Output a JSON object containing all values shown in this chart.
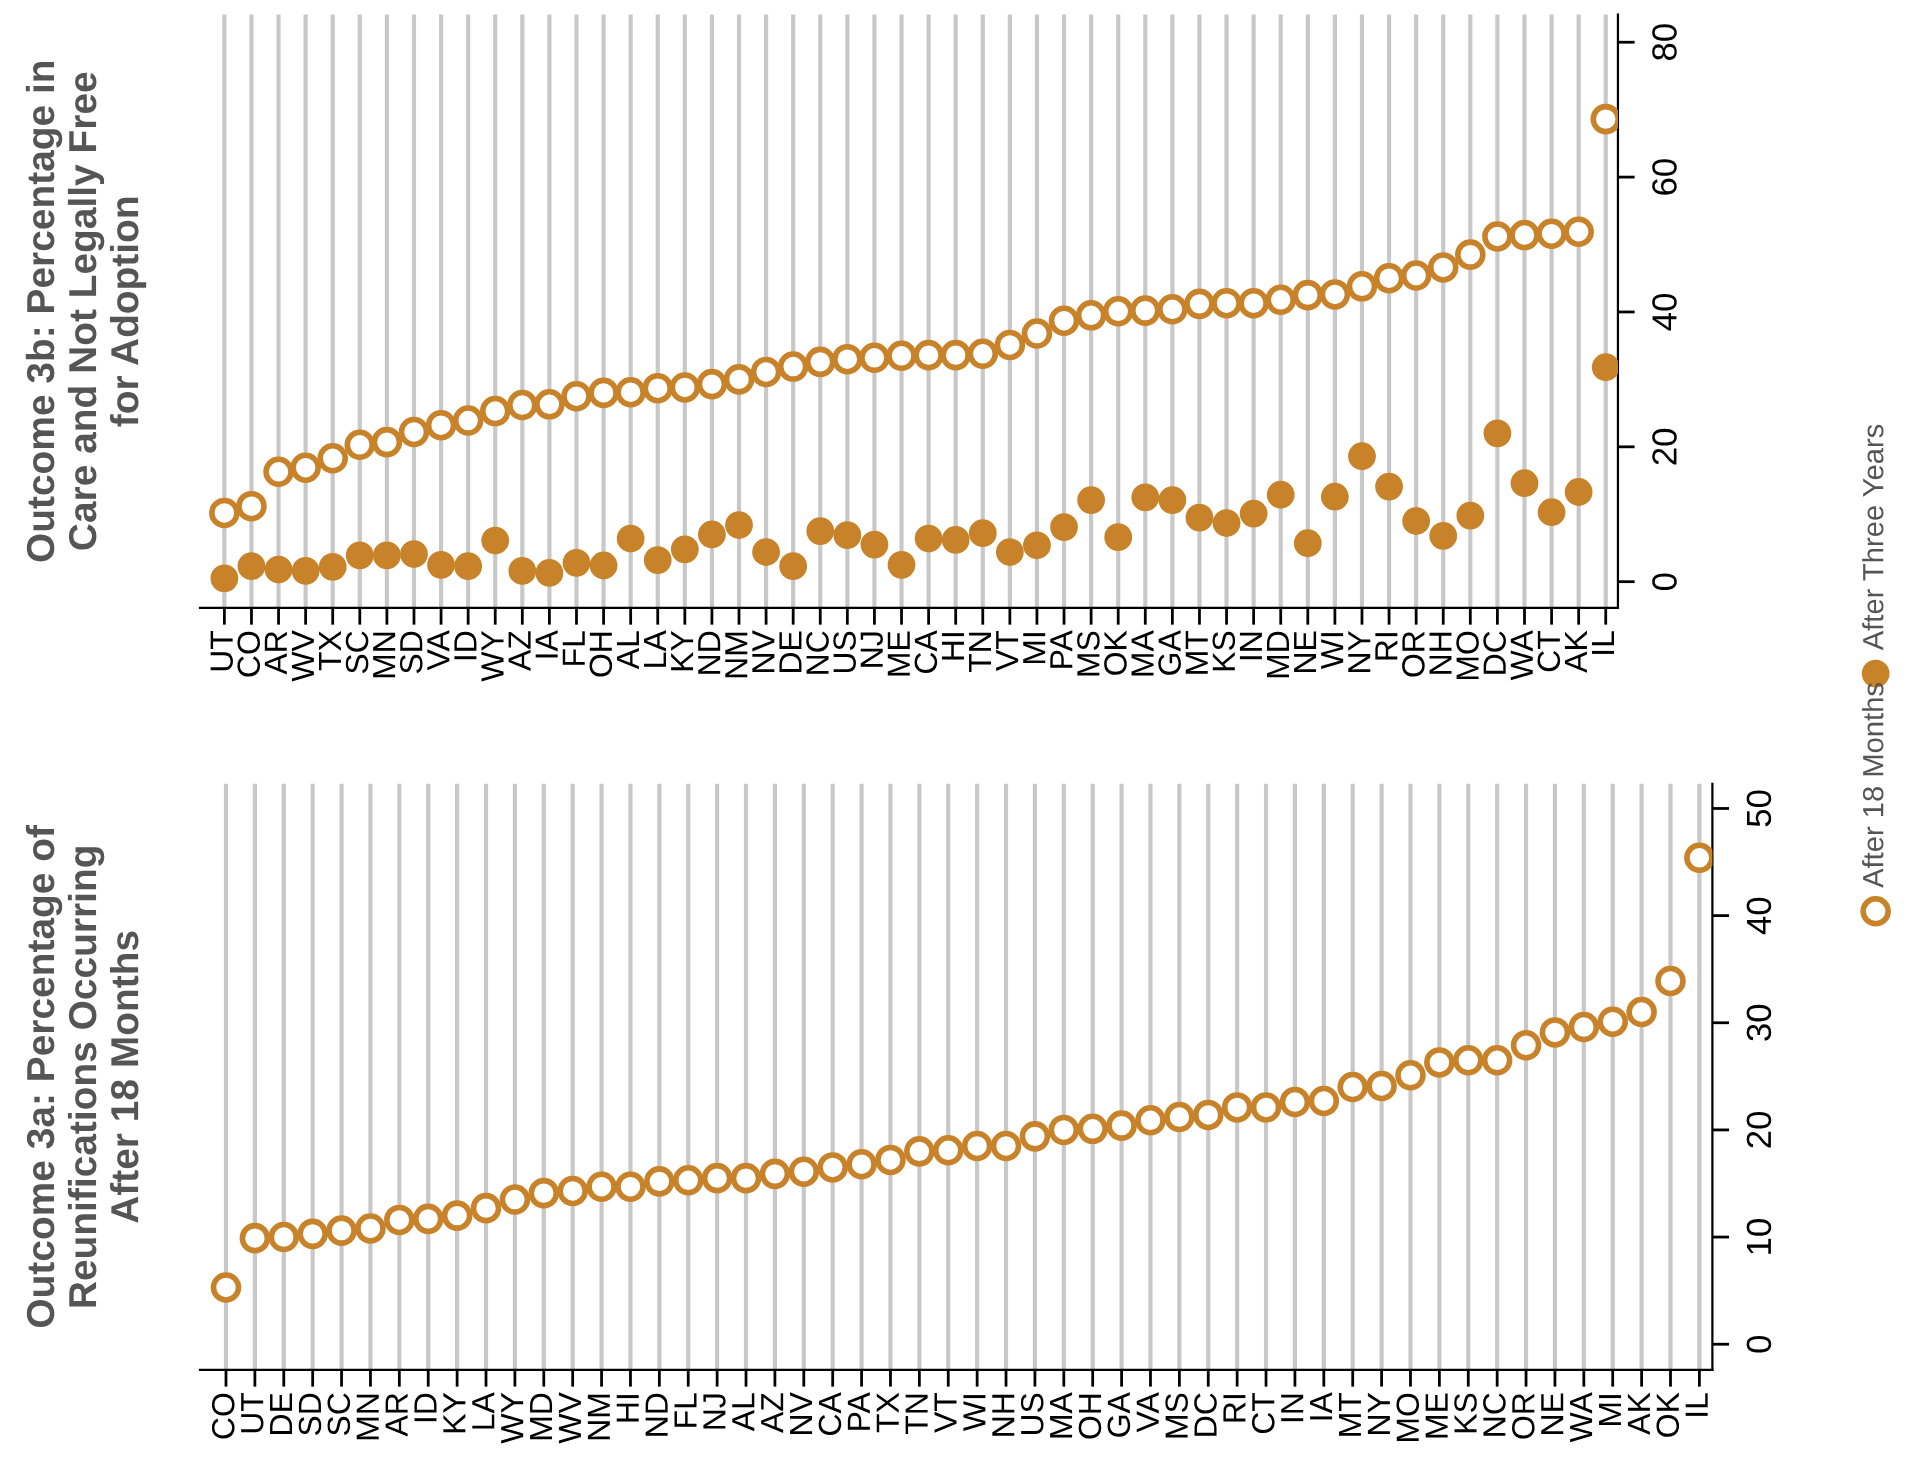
{
  "chart_data": [
    {
      "type": "scatter",
      "title": "Outcome 3b: Percentage in\nCare and Not Legally Free\nfor Adoption",
      "categories": [
        "UT",
        "CO",
        "AR",
        "WV",
        "TX",
        "SC",
        "MN",
        "SD",
        "VA",
        "ID",
        "WY",
        "AZ",
        "IA",
        "FL",
        "OH",
        "AL",
        "LA",
        "KY",
        "ND",
        "NM",
        "NV",
        "DE",
        "NC",
        "US",
        "NJ",
        "ME",
        "CA",
        "HI",
        "TN",
        "VT",
        "MI",
        "PA",
        "MS",
        "OK",
        "MA",
        "GA",
        "MT",
        "KS",
        "IN",
        "MD",
        "NE",
        "WI",
        "NY",
        "RI",
        "OR",
        "NH",
        "MO",
        "DC",
        "WA",
        "CT",
        "AK",
        "IL"
      ],
      "series": [
        {
          "color": "#c8832a",
          "values": [
            10.2,
            11.2,
            16.3,
            16.9,
            18.3,
            20.3,
            20.7,
            22.2,
            23.2,
            23.9,
            25.3,
            26.2,
            26.3,
            27.5,
            28.0,
            28.1,
            28.7,
            28.8,
            29.3,
            30.0,
            31.1,
            31.9,
            32.6,
            33.0,
            33.2,
            33.5,
            33.6,
            33.6,
            33.8,
            35.1,
            36.8,
            38.7,
            39.5,
            40.1,
            40.2,
            40.4,
            41.2,
            41.3,
            41.3,
            41.8,
            42.5,
            42.6,
            43.8,
            45.0,
            45.4,
            46.6,
            48.5,
            51.2,
            51.4,
            51.6,
            51.9,
            68.6
          ]
        },
        {
          "name": "After Three Years",
          "color": "#c8832a",
          "marker": "circle",
          "values": [
            0.5,
            2.3,
            1.8,
            1.6,
            2.2,
            3.9,
            3.9,
            4.1,
            2.5,
            2.3,
            6.1,
            1.6,
            1.3,
            2.8,
            2.4,
            6.4,
            3.2,
            4.8,
            7.0,
            8.4,
            4.4,
            2.3,
            7.5,
            6.9,
            5.5,
            2.5,
            6.4,
            6.2,
            7.2,
            4.4,
            5.4,
            8.1,
            12.1,
            6.6,
            12.5,
            12.1,
            9.5,
            8.7,
            10.1,
            12.9,
            5.7,
            12.6,
            18.6,
            14.1,
            9.0,
            6.8,
            9.8,
            22.0,
            14.6,
            10.3,
            13.3,
            31.8
          ]
        }
      ],
      "ylim": [
        -3.9,
        84.1
      ],
      "yticks": [
        0,
        20,
        40,
        60,
        80
      ],
      "grid": "x",
      "legend": "right"
    },
    {
      "type": "scatter",
      "title": "Outcome 3a: Percentage of\nReunifications Occurring\nAfter 18 Months",
      "categories": [
        "CO",
        "UT",
        "DE",
        "SD",
        "SC",
        "MN",
        "AR",
        "ID",
        "KY",
        "LA",
        "WY",
        "MD",
        "WV",
        "NM",
        "HI",
        "ND",
        "FL",
        "NJ",
        "AL",
        "AZ",
        "NV",
        "CA",
        "PA",
        "TX",
        "TN",
        "VT",
        "WI",
        "NH",
        "US",
        "MA",
        "OH",
        "GA",
        "VA",
        "MS",
        "DC",
        "RI",
        "CT",
        "IN",
        "IA",
        "MT",
        "NY",
        "MO",
        "ME",
        "KS",
        "NC",
        "OR",
        "NE",
        "WA",
        "MI",
        "AK",
        "OK",
        "IL"
      ],
      "series": [
        {
          "name": "After 18 Months",
          "color": "#c8832a",
          "values": [
            5.3,
            9.9,
            10.0,
            10.3,
            10.6,
            10.8,
            11.6,
            11.7,
            12.0,
            12.7,
            13.5,
            14.1,
            14.3,
            14.7,
            14.7,
            15.2,
            15.3,
            15.5,
            15.5,
            15.9,
            16.1,
            16.5,
            16.8,
            17.2,
            18.0,
            18.1,
            18.5,
            18.5,
            19.4,
            20.0,
            20.1,
            20.4,
            20.9,
            21.2,
            21.4,
            22.1,
            22.1,
            22.6,
            22.7,
            24.0,
            24.1,
            25.1,
            26.3,
            26.5,
            26.5,
            27.9,
            29.1,
            29.6,
            30.1,
            31.0,
            33.9,
            45.4
          ]
        }
      ],
      "ylim": [
        -2.4,
        52.3
      ],
      "yticks": [
        0,
        10,
        20,
        30,
        40,
        50
      ],
      "grid": "x",
      "legend": "right"
    }
  ]
}
